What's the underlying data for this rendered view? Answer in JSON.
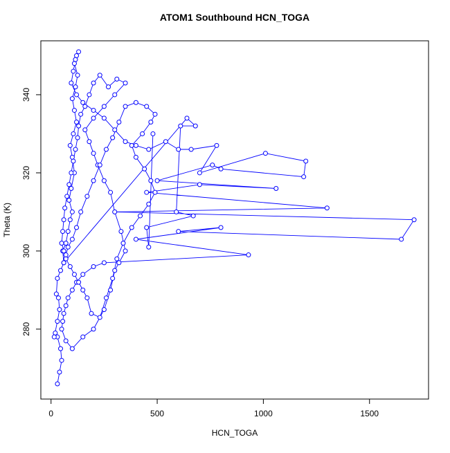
{
  "chart_data": {
    "type": "line",
    "title": "ATOM1 Southbound HCN_TOGA",
    "xlabel": "HCN_TOGA",
    "ylabel": "Theta (K)",
    "color": "#0000ff",
    "marker": "circle",
    "xlim": [
      -48,
      1778
    ],
    "ylim": [
      262.1,
      353.8
    ],
    "xticks": [
      0,
      500,
      1000,
      1500
    ],
    "yticks": [
      280,
      300,
      320,
      340
    ],
    "x": [
      30,
      40,
      50,
      45,
      30,
      20,
      15,
      30,
      40,
      35,
      25,
      30,
      45,
      60,
      55,
      70,
      80,
      90,
      100,
      85,
      95,
      110,
      100,
      90,
      105,
      120,
      110,
      100,
      115,
      125,
      110,
      120,
      130,
      115,
      105,
      95,
      120,
      150,
      200,
      250,
      300,
      350,
      400,
      460,
      540,
      600,
      660,
      780,
      700,
      1010,
      1200,
      1190,
      800,
      760,
      500,
      1060,
      700,
      450,
      1300,
      300,
      1710,
      1650,
      600,
      800,
      400,
      930,
      250,
      200,
      150,
      120,
      100,
      80,
      70,
      60,
      55,
      50,
      70,
      100,
      150,
      200,
      250,
      280,
      300,
      320,
      350,
      330,
      300,
      280,
      250,
      220,
      200,
      180,
      160,
      200,
      250,
      300,
      350,
      310,
      270,
      230,
      200,
      180,
      160,
      140,
      130,
      125,
      115,
      105,
      95,
      85,
      75,
      65,
      60,
      55,
      50,
      60,
      70,
      90,
      110,
      130,
      150,
      170,
      190,
      230,
      260,
      290,
      310,
      340,
      380,
      420,
      460,
      490,
      470,
      440,
      400,
      380,
      430,
      470,
      490,
      450,
      400,
      350,
      320,
      290,
      260,
      230,
      200,
      170,
      140,
      120,
      100,
      80,
      70,
      60,
      640,
      680,
      610,
      590,
      670,
      450,
      460,
      480
    ],
    "values": [
      266,
      269,
      272,
      275,
      278,
      279,
      278,
      282,
      285,
      288,
      289,
      293,
      295,
      297,
      300,
      302,
      305,
      308,
      310,
      313,
      316,
      320,
      324,
      327,
      330,
      333,
      336,
      339,
      342,
      345,
      348,
      350,
      351,
      349,
      346,
      343,
      340,
      338,
      336,
      334,
      331,
      328,
      327,
      326,
      328,
      326,
      326,
      327,
      320,
      325,
      323,
      319,
      321,
      322,
      318,
      316,
      317,
      315,
      311,
      310,
      308,
      303,
      305,
      306,
      303,
      299,
      297,
      296,
      294,
      292,
      290,
      288,
      286,
      284,
      282,
      280,
      277,
      275,
      278,
      280,
      285,
      290,
      295,
      297,
      300,
      305,
      310,
      315,
      318,
      322,
      325,
      328,
      331,
      334,
      337,
      340,
      343,
      344,
      342,
      345,
      343,
      340,
      337,
      335,
      332,
      329,
      326,
      323,
      320,
      317,
      314,
      311,
      308,
      305,
      302,
      300,
      298,
      296,
      294,
      292,
      290,
      288,
      284,
      283,
      288,
      293,
      298,
      302,
      306,
      309,
      312,
      315,
      318,
      321,
      324,
      327,
      330,
      333,
      335,
      337,
      338,
      337,
      333,
      329,
      326,
      322,
      318,
      314,
      310,
      306,
      303,
      301,
      299,
      297,
      334,
      332,
      332,
      310,
      309,
      306,
      301,
      330
    ]
  }
}
